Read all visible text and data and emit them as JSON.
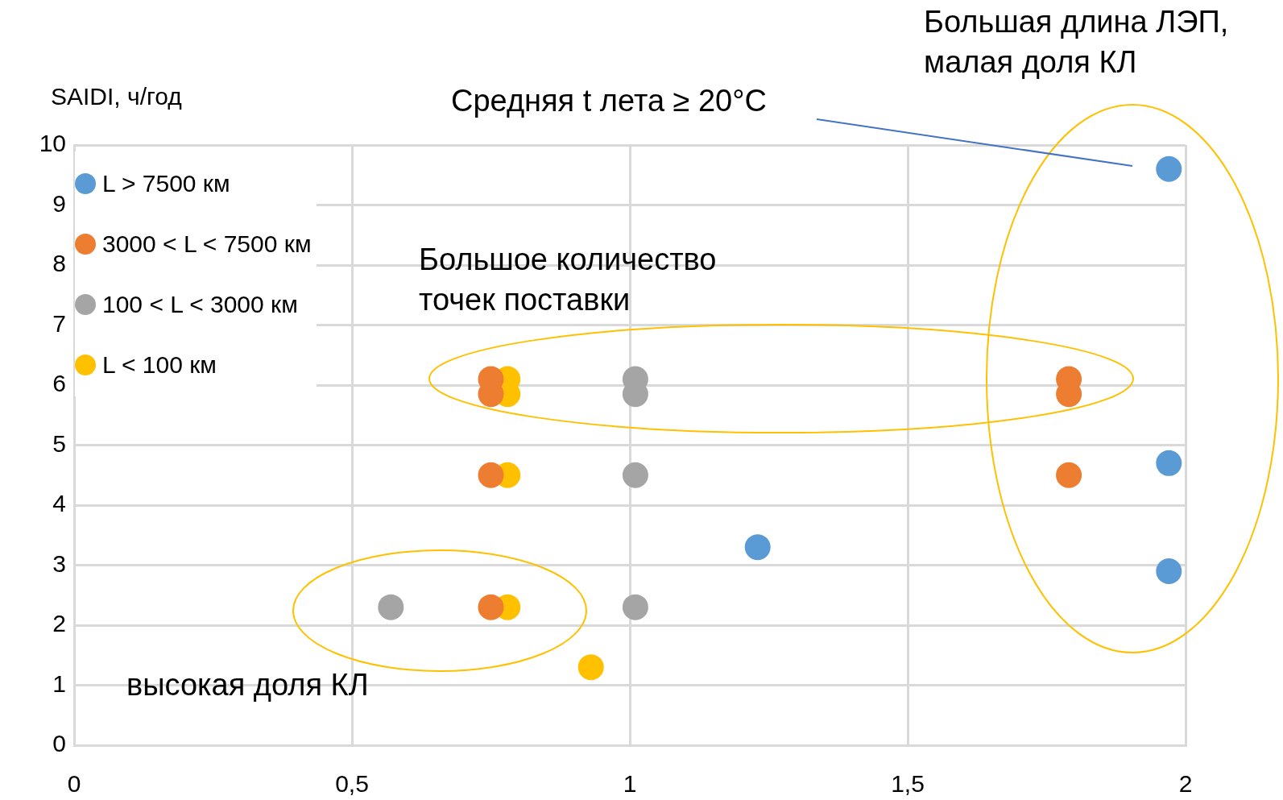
{
  "chart_data": {
    "type": "scatter",
    "ylabel": "SAIDI, ч/год",
    "xlim": [
      0,
      2
    ],
    "xticks": [
      0,
      {
        "value": 0.5,
        "label": "0,5"
      },
      1,
      {
        "value": 1.5,
        "label": "1,5"
      },
      2
    ],
    "ylim": [
      0,
      10
    ],
    "yticks": [
      0,
      1,
      2,
      3,
      4,
      5,
      6,
      7,
      8,
      9,
      10
    ],
    "grid": true,
    "legend": "top left",
    "marker": "circle",
    "series": [
      {
        "name": "L > 7500 км",
        "color": "#5b9bd5",
        "x": [
          1.97,
          1.97,
          1.97,
          1.23
        ],
        "values": [
          9.6,
          4.7,
          2.9,
          3.3
        ]
      },
      {
        "name": "3000 < L < 7500 км",
        "color": "#ed7d31",
        "x": [
          0.75,
          0.75,
          0.75,
          0.75,
          1.79,
          1.79,
          1.79
        ],
        "values": [
          6.1,
          5.85,
          4.5,
          2.3,
          6.1,
          5.85,
          4.5
        ]
      },
      {
        "name": "100 < L < 3000 км",
        "color": "#a5a5a5",
        "x": [
          0.57,
          1.01,
          1.01,
          1.01,
          1.01
        ],
        "values": [
          2.3,
          6.1,
          5.85,
          4.5,
          2.3
        ]
      },
      {
        "name": "L < 100 км",
        "color": "#ffc000",
        "x": [
          0.78,
          0.78,
          0.78,
          0.78,
          0.93
        ],
        "values": [
          6.1,
          5.85,
          4.5,
          2.3,
          1.3
        ]
      }
    ],
    "annotations": [
      "Большая длина ЛЭП,\nмалая доля КЛ",
      "Средняя t лета ≥ 20°C",
      "Большое количество\nточек поставки",
      "высокая доля КЛ"
    ]
  }
}
